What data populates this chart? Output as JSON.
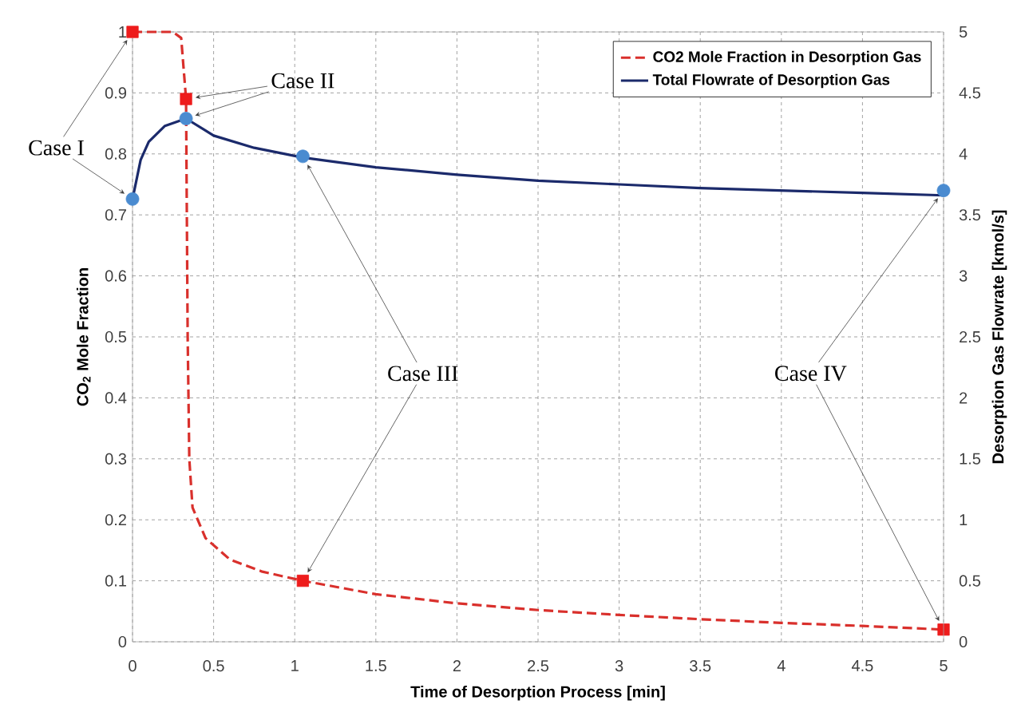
{
  "chart_data": {
    "type": "line",
    "xlabel": "Time of Desorption Process [min]",
    "ylabel": "CO$_{2}$ Mole Fraction",
    "y2label": "Desorption Gas Flowrate [kmol/s]",
    "xlim": [
      0,
      5
    ],
    "xticks": [
      0,
      0.5,
      1,
      1.5,
      2,
      2.5,
      3,
      3.5,
      4,
      4.5,
      5
    ],
    "ylim": [
      0,
      1
    ],
    "yticks": [
      0,
      0.1,
      0.2,
      0.3,
      0.4,
      0.5,
      0.6,
      0.7,
      0.8,
      0.9,
      1
    ],
    "y2lim": [
      0,
      5
    ],
    "y2ticks": [
      0,
      0.5,
      1,
      1.5,
      2,
      2.5,
      3,
      3.5,
      4,
      4.5,
      5
    ],
    "grid": true,
    "legend": "top right",
    "series": [
      {
        "name": "CO2 Mole Fraction in Desorption Gas",
        "color": "#d9302c",
        "line_style": "dashed",
        "marker": "none",
        "x": [
          0,
          0.25,
          0.3,
          0.33,
          0.34,
          0.35,
          0.37,
          0.45,
          0.6,
          0.8,
          1.05,
          1.5,
          2,
          2.5,
          3,
          3.5,
          4,
          4.5,
          5
        ],
        "values": [
          1,
          1,
          0.99,
          0.89,
          0.5,
          0.3,
          0.22,
          0.17,
          0.135,
          0.115,
          0.1,
          0.078,
          0.063,
          0.052,
          0.044,
          0.037,
          0.031,
          0.026,
          0.02
        ]
      },
      {
        "name": "Total Flowrate of Desorption Gas",
        "color": "#1b2a6b",
        "line_style": "solid",
        "marker": "none",
        "axis": "y2",
        "x": [
          0,
          0.05,
          0.1,
          0.2,
          0.33,
          0.5,
          0.75,
          1.05,
          1.5,
          2,
          2.5,
          3,
          3.5,
          4,
          4.5,
          5
        ],
        "values": [
          3.63,
          3.95,
          4.1,
          4.23,
          4.29,
          4.15,
          4.05,
          3.97,
          3.89,
          3.83,
          3.78,
          3.75,
          3.72,
          3.7,
          3.68,
          3.66
        ]
      },
      {
        "type": "scatter",
        "color": "#ee1c1c",
        "marker": "square",
        "x": [
          0,
          0.33,
          1.05,
          5
        ],
        "values": [
          1,
          0.89,
          0.1,
          0.02
        ]
      },
      {
        "type": "scatter",
        "color": "#4a8bd0",
        "marker": "circle",
        "axis": "y2",
        "x": [
          0,
          0.33,
          1.05,
          5
        ],
        "values": [
          3.63,
          4.29,
          3.98,
          3.7
        ]
      }
    ],
    "annotations": [
      {
        "text": "Case I",
        "x": 0,
        "y": 1
      },
      {
        "text": "Case II",
        "x": 0.33,
        "y": 0.89
      },
      {
        "text": "Case III",
        "x": 1.05,
        "y": 0.1
      },
      {
        "text": "Case IV",
        "x": 5,
        "y": 0.02
      }
    ]
  }
}
